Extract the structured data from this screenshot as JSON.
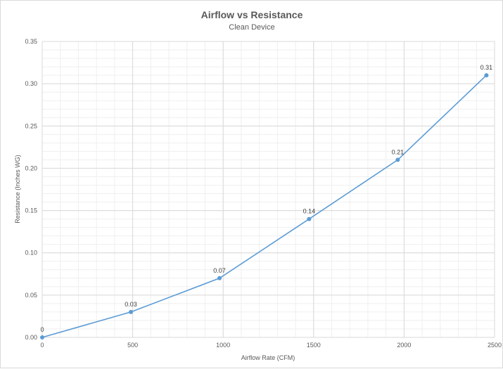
{
  "chart_data": {
    "type": "line",
    "title": "Airflow vs Resistance",
    "subtitle": "Clean Device",
    "xlabel": "Airflow Rate (CFM)",
    "ylabel": "Resistance (Inches WG)",
    "xlim": [
      0,
      2500
    ],
    "ylim": [
      0,
      0.35
    ],
    "x_ticks": [
      "0",
      "500",
      "1000",
      "1500",
      "2000",
      "2500"
    ],
    "y_ticks": [
      "0.00",
      "0.05",
      "0.10",
      "0.15",
      "0.20",
      "0.25",
      "0.30",
      "0.35"
    ],
    "grid": true,
    "series": [
      {
        "x": [
          0,
          490,
          980,
          1475,
          1965,
          2455
        ],
        "y": [
          0,
          0.03,
          0.07,
          0.14,
          0.21,
          0.31
        ],
        "labels": [
          "0",
          "0.03",
          "0.07",
          "0.14",
          "0.21",
          "0.31"
        ],
        "color": "#5b9bd5"
      }
    ],
    "grid_color": "#d9d9d9"
  }
}
